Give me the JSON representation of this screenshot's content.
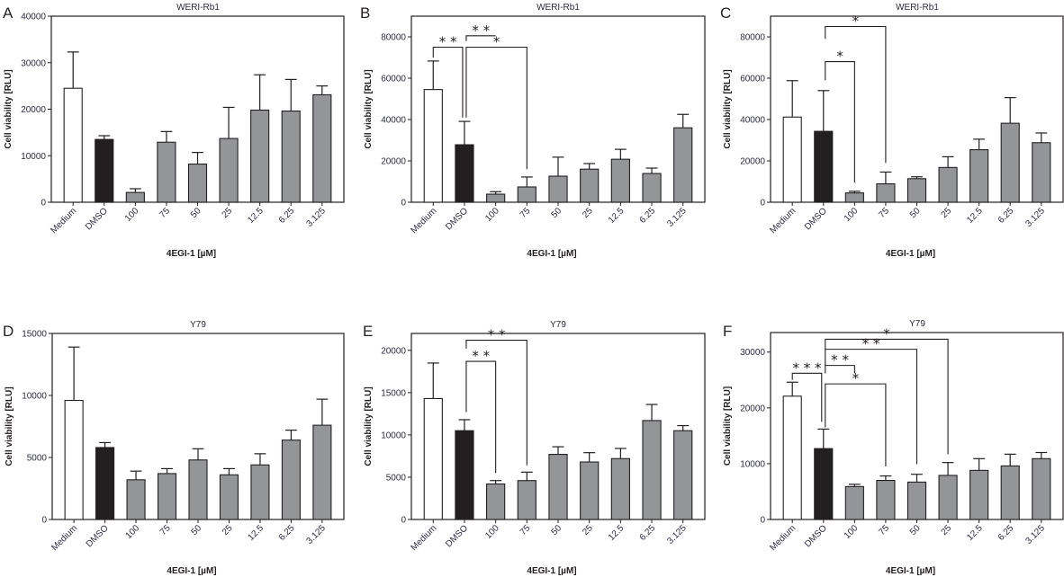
{
  "colors": {
    "medium": "#ffffff",
    "dmso": "#231f20",
    "treatment": "#939598",
    "line": "#231f20"
  },
  "chart_data": [
    {
      "panel": "A",
      "type": "bar",
      "title": "WERI-Rb1",
      "xlabel": "4EGI-1 [µM]",
      "ylabel": "Cell viability [RLU]",
      "categories": [
        "Medium",
        "DMSO",
        "100",
        "75",
        "50",
        "25",
        "12.5",
        "6.25",
        "3.125"
      ],
      "values": [
        24500,
        13500,
        2100,
        12900,
        8200,
        13700,
        19800,
        19600,
        23100
      ],
      "errors": [
        7800,
        800,
        800,
        2300,
        2500,
        6700,
        7600,
        6800,
        1900
      ],
      "yticks": [
        0,
        10000,
        20000,
        30000,
        40000
      ],
      "ylim": [
        0,
        40000
      ],
      "grid": false,
      "significance": []
    },
    {
      "panel": "B",
      "type": "bar",
      "title": "WERI-Rb1",
      "xlabel": "4EGI-1 [µM]",
      "ylabel": "Cell viability [RLU]",
      "categories": [
        "Medium",
        "DMSO",
        "100",
        "75",
        "50",
        "25",
        "12.5",
        "6.25",
        "3.125"
      ],
      "values": [
        54500,
        27800,
        3900,
        7400,
        12600,
        16000,
        20800,
        13900,
        36000
      ],
      "errors": [
        13800,
        11300,
        1200,
        4800,
        9200,
        2700,
        4800,
        2600,
        6500
      ],
      "yticks": [
        0,
        20000,
        40000,
        60000,
        80000
      ],
      "ylim": [
        0,
        90000
      ],
      "grid": false,
      "significance": [
        {
          "from": 0,
          "to": 1,
          "label": "**",
          "level": 75000,
          "left_drop": 70000,
          "right_drop": 41000
        },
        {
          "from": 1,
          "to": 2,
          "label": "**",
          "level": 80500,
          "left_drop": 78000,
          "right_drop": 80500
        },
        {
          "from": 1,
          "to": 3,
          "label": "*",
          "level": 75000,
          "left_drop": 41000,
          "right_drop": 16000
        }
      ]
    },
    {
      "panel": "C",
      "type": "bar",
      "title": "WERI-Rb1",
      "xlabel": "4EGI-1 [µM]",
      "ylabel": "Cell viability [RLU]",
      "categories": [
        "Medium",
        "DMSO",
        "100",
        "75",
        "50",
        "25",
        "12.5",
        "6.25",
        "3.125"
      ],
      "values": [
        41200,
        34300,
        4500,
        8900,
        11400,
        16800,
        25400,
        38200,
        28800
      ],
      "errors": [
        17600,
        19700,
        800,
        5700,
        900,
        5200,
        5100,
        12400,
        4700
      ],
      "yticks": [
        0,
        20000,
        40000,
        60000,
        80000
      ],
      "ylim": [
        0,
        90000
      ],
      "grid": false,
      "significance": [
        {
          "from": 1,
          "to": 3,
          "label": "*",
          "level": 85000,
          "left_drop": 79000,
          "right_drop": 19000
        },
        {
          "from": 1,
          "to": 2,
          "label": "*",
          "level": 68000,
          "left_drop": 59000,
          "right_drop": 9500
        }
      ]
    },
    {
      "panel": "D",
      "type": "bar",
      "title": "Y79",
      "xlabel": "4EGI-1 [µM]",
      "ylabel": "Cell viability [RLU]",
      "categories": [
        "Medium",
        "DMSO",
        "100",
        "75",
        "50",
        "25",
        "12.5",
        "6.25",
        "3.125"
      ],
      "values": [
        9600,
        5800,
        3200,
        3700,
        4800,
        3600,
        4400,
        6400,
        7600
      ],
      "errors": [
        4300,
        400,
        700,
        400,
        900,
        500,
        900,
        800,
        2100
      ],
      "yticks": [
        0,
        5000,
        10000,
        15000
      ],
      "ylim": [
        0,
        15000
      ],
      "grid": false,
      "significance": []
    },
    {
      "panel": "E",
      "type": "bar",
      "title": "Y79",
      "xlabel": "4EGI-1 [µM]",
      "ylabel": "Cell viability [RLU]",
      "categories": [
        "Medium",
        "DMSO",
        "100",
        "75",
        "50",
        "25",
        "12.5",
        "6.25",
        "3.125"
      ],
      "values": [
        14300,
        10500,
        4200,
        4600,
        7700,
        6800,
        7200,
        11700,
        10500
      ],
      "errors": [
        4200,
        1300,
        400,
        1000,
        900,
        1100,
        1200,
        1900,
        600
      ],
      "yticks": [
        0,
        5000,
        10000,
        15000,
        20000
      ],
      "ylim": [
        0,
        22000
      ],
      "grid": false,
      "significance": [
        {
          "from": 1,
          "to": 3,
          "label": "**",
          "level": 21200,
          "left_drop": 20200,
          "right_drop": 6400
        },
        {
          "from": 1,
          "to": 2,
          "label": "**",
          "level": 18700,
          "left_drop": 12700,
          "right_drop": 5500
        }
      ]
    },
    {
      "panel": "F",
      "type": "bar",
      "title": "Y79",
      "xlabel": "4EGI-1 [µM]",
      "ylabel": "Cell viability [RLU]",
      "categories": [
        "Medium",
        "DMSO",
        "100",
        "75",
        "50",
        "25",
        "12.5",
        "6.25",
        "3.125"
      ],
      "values": [
        22100,
        12700,
        5900,
        7000,
        6700,
        7900,
        8800,
        9600,
        10900
      ],
      "errors": [
        2500,
        3500,
        400,
        800,
        1400,
        2300,
        2100,
        2100,
        1100
      ],
      "yticks": [
        0,
        10000,
        20000,
        30000
      ],
      "ylim": [
        0,
        33500
      ],
      "grid": false,
      "significance": [
        {
          "from": 0,
          "to": 1,
          "label": "***",
          "level": 26200,
          "left_drop": 25000,
          "right_drop": 17500
        },
        {
          "from": 1,
          "to": 2,
          "label": "**",
          "level": 27600,
          "left_drop": 26200,
          "right_drop": 26200
        },
        {
          "from": 1,
          "to": 3,
          "label": "*",
          "level": 24300,
          "left_drop": 16500,
          "right_drop": 9500
        },
        {
          "from": 1,
          "to": 4,
          "label": "**",
          "level": 30500,
          "left_drop": 27600,
          "right_drop": 9900
        },
        {
          "from": 1,
          "to": 5,
          "label": "*",
          "level": 32300,
          "left_drop": 30500,
          "right_drop": 11700
        }
      ]
    }
  ]
}
